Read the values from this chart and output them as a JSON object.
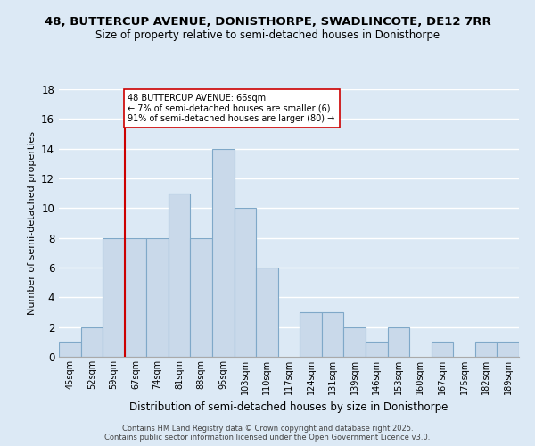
{
  "title1": "48, BUTTERCUP AVENUE, DONISTHORPE, SWADLINCOTE, DE12 7RR",
  "title2": "Size of property relative to semi-detached houses in Donisthorpe",
  "xlabel": "Distribution of semi-detached houses by size in Donisthorpe",
  "ylabel": "Number of semi-detached properties",
  "bin_labels": [
    "45sqm",
    "52sqm",
    "59sqm",
    "67sqm",
    "74sqm",
    "81sqm",
    "88sqm",
    "95sqm",
    "103sqm",
    "110sqm",
    "117sqm",
    "124sqm",
    "131sqm",
    "139sqm",
    "146sqm",
    "153sqm",
    "160sqm",
    "167sqm",
    "175sqm",
    "182sqm",
    "189sqm"
  ],
  "bar_heights": [
    1,
    2,
    8,
    8,
    8,
    11,
    8,
    14,
    10,
    6,
    0,
    3,
    3,
    2,
    1,
    2,
    0,
    1,
    0,
    1,
    1
  ],
  "bar_color": "#c9d9ea",
  "bar_edge_color": "#7fa8c8",
  "background_color": "#dce9f5",
  "grid_color": "#ffffff",
  "vline_position": 2.5,
  "vline_color": "#cc0000",
  "annotation_text": "48 BUTTERCUP AVENUE: 66sqm\n← 7% of semi-detached houses are smaller (6)\n91% of semi-detached houses are larger (80) →",
  "annotation_box_facecolor": "#ffffff",
  "annotation_box_edgecolor": "#cc0000",
  "ylim": [
    0,
    18
  ],
  "yticks": [
    0,
    2,
    4,
    6,
    8,
    10,
    12,
    14,
    16,
    18
  ],
  "footer1": "Contains HM Land Registry data © Crown copyright and database right 2025.",
  "footer2": "Contains public sector information licensed under the Open Government Licence v3.0."
}
